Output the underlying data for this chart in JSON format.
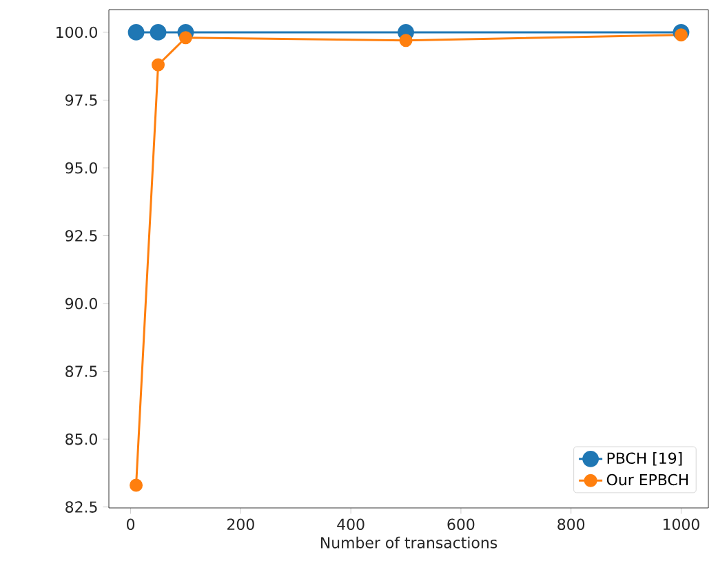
{
  "chart_data": {
    "type": "line",
    "xlabel": "Number of transactions",
    "x": [
      10,
      50,
      100,
      500,
      1000
    ],
    "series": [
      {
        "name": "PBCH [19]",
        "color": "#1f77b4",
        "values": [
          100.0,
          100.0,
          100.0,
          100.0,
          100.0
        ]
      },
      {
        "name": "Our EPBCH",
        "color": "#ff7f0e",
        "values": [
          83.3,
          98.8,
          99.8,
          99.7,
          99.9
        ]
      }
    ],
    "xlim": [
      -39.5,
      1049.5
    ],
    "ylim": [
      82.465,
      100.835
    ],
    "xticks": [
      0,
      200,
      400,
      600,
      800,
      1000
    ],
    "yticks": [
      {
        "value": 82.5,
        "label": "82.5"
      },
      {
        "value": 85,
        "label": "85.0"
      },
      {
        "value": 87.5,
        "label": "87.5"
      },
      {
        "value": 90,
        "label": "90.0"
      },
      {
        "value": 92.5,
        "label": "92.5"
      },
      {
        "value": 95,
        "label": "95.0"
      },
      {
        "value": 97.5,
        "label": "97.5"
      },
      {
        "value": 100,
        "label": "100.0"
      }
    ],
    "legend": "bottom right",
    "marker": "circle",
    "line_style": "solid",
    "grid": false
  }
}
